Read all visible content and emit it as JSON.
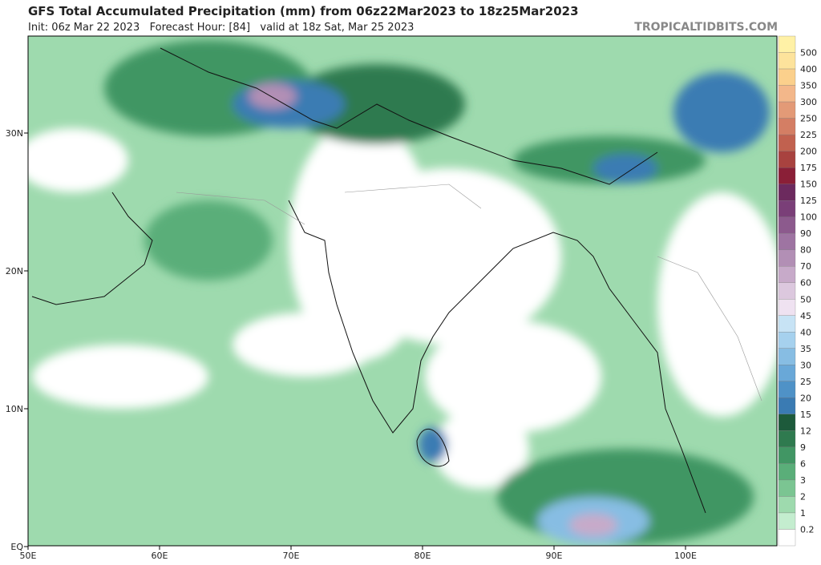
{
  "header": {
    "title": "GFS Total Accumulated Precipitation (mm) from 06z22Mar2023 to 18z25Mar2023",
    "subtitle": "Init: 06z Mar 22 2023   Forecast Hour: [84]   valid at 18z Sat, Mar 25 2023",
    "site": "TROPICALTIDBITS.COM"
  },
  "map": {
    "lat_labels": [
      "30N",
      "20N",
      "10N",
      "EQ"
    ],
    "lon_labels": [
      "50E",
      "60E",
      "70E",
      "80E",
      "90E",
      "100E"
    ]
  },
  "colorbar": {
    "labels": [
      "500",
      "400",
      "350",
      "300",
      "250",
      "225",
      "200",
      "175",
      "150",
      "125",
      "100",
      "90",
      "80",
      "70",
      "60",
      "50",
      "45",
      "40",
      "35",
      "30",
      "25",
      "20",
      "15",
      "12",
      "9",
      "6",
      "3",
      "2",
      "1",
      "0.2"
    ],
    "colors": [
      "#fff1a6",
      "#fde39c",
      "#fbd08c",
      "#f3b78a",
      "#e39a77",
      "#d47e64",
      "#c1614f",
      "#a8423f",
      "#8a1f37",
      "#6c2a5e",
      "#7a3f78",
      "#8c5a8d",
      "#9e74a2",
      "#b28fb5",
      "#c7aac9",
      "#dcc8de",
      "#efe2f1",
      "#c7e3f5",
      "#a6d1ee",
      "#87bde3",
      "#69a8d8",
      "#4f92c7",
      "#3a7bb3",
      "#1d5a3b",
      "#2f7a4f",
      "#419664",
      "#5aae79",
      "#7bc592",
      "#9edaae",
      "#c4edcf",
      "#ffffff"
    ]
  }
}
